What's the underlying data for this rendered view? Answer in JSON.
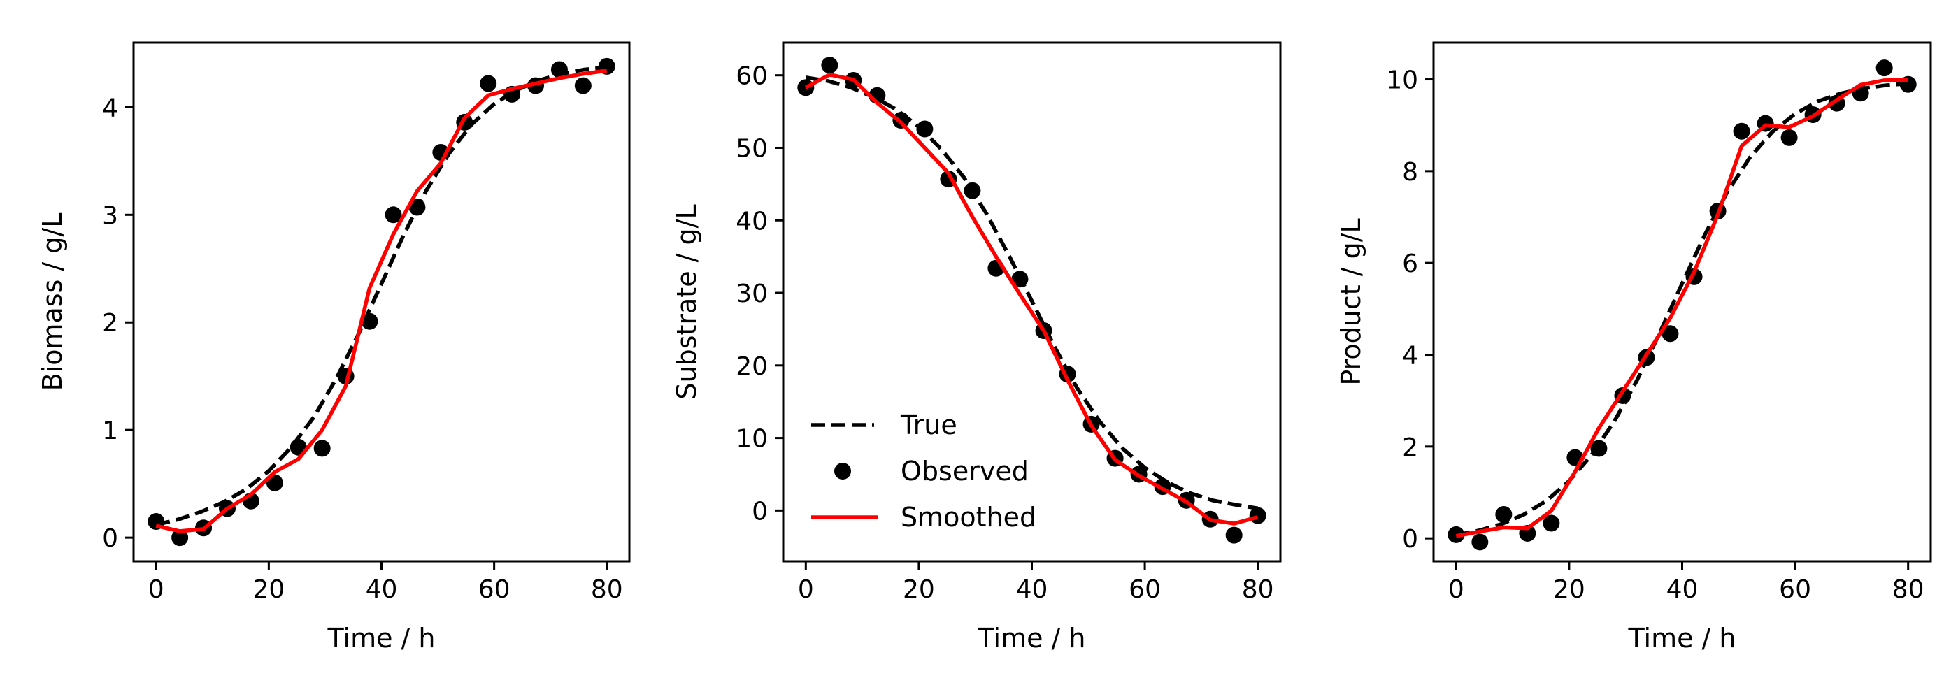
{
  "figure": {
    "legend": {
      "placement": "lower-left",
      "panel": 1,
      "entries": [
        {
          "label": "True",
          "style": "dashed-line",
          "color": "#000000"
        },
        {
          "label": "Observed",
          "style": "marker",
          "color": "#000000"
        },
        {
          "label": "Smoothed",
          "style": "solid-line",
          "color": "#ff0000"
        }
      ]
    }
  },
  "chart_data": [
    {
      "type": "line",
      "title": "",
      "xlabel": "Time / h",
      "ylabel": "Biomass / g/L",
      "xlim": [
        -4,
        84
      ],
      "ylim": [
        -0.22,
        4.6
      ],
      "xticks": [
        0,
        20,
        40,
        60,
        80
      ],
      "xtick_labels": [
        "0",
        "20",
        "40",
        "60",
        "80"
      ],
      "yticks": [
        0,
        1,
        2,
        3,
        4
      ],
      "ytick_labels": [
        "0",
        "1",
        "2",
        "3",
        "4"
      ],
      "grid": false,
      "x_observed": [
        0,
        4.21,
        8.42,
        12.63,
        16.84,
        21.05,
        25.26,
        29.47,
        33.68,
        37.89,
        42.11,
        46.32,
        50.53,
        54.74,
        58.95,
        63.16,
        67.37,
        71.58,
        75.79,
        80
      ],
      "series": [
        {
          "name": "True",
          "style": "dashed",
          "color": "#000000",
          "x": [
            0,
            4,
            8,
            12,
            16,
            20,
            24,
            28,
            32,
            36,
            40,
            44,
            48,
            52,
            56,
            60,
            64,
            68,
            72,
            76,
            80
          ],
          "values": [
            0.12,
            0.17,
            0.24,
            0.33,
            0.45,
            0.62,
            0.84,
            1.12,
            1.48,
            1.9,
            2.36,
            2.82,
            3.23,
            3.57,
            3.84,
            4.03,
            4.16,
            4.25,
            4.31,
            4.35,
            4.37
          ]
        },
        {
          "name": "Observed",
          "style": "marker",
          "color": "#000000",
          "values": [
            0.15,
            0.0,
            0.09,
            0.27,
            0.34,
            0.51,
            0.84,
            0.83,
            1.5,
            2.01,
            3.0,
            3.07,
            3.58,
            3.86,
            4.22,
            4.12,
            4.2,
            4.35,
            4.2,
            4.38
          ]
        },
        {
          "name": "Smoothed",
          "style": "solid",
          "color": "#ff0000",
          "values": [
            0.11,
            0.06,
            0.08,
            0.27,
            0.4,
            0.61,
            0.73,
            1.0,
            1.41,
            2.32,
            2.82,
            3.22,
            3.48,
            3.9,
            4.11,
            4.17,
            4.22,
            4.27,
            4.31,
            4.34
          ]
        }
      ]
    },
    {
      "type": "line",
      "title": "",
      "xlabel": "Time / h",
      "ylabel": "Substrate / g/L",
      "xlim": [
        -4,
        84
      ],
      "ylim": [
        -7,
        64.5
      ],
      "xticks": [
        0,
        20,
        40,
        60,
        80
      ],
      "xtick_labels": [
        "0",
        "20",
        "40",
        "60",
        "80"
      ],
      "yticks": [
        0,
        10,
        20,
        30,
        40,
        50,
        60
      ],
      "ytick_labels": [
        "0",
        "10",
        "20",
        "30",
        "40",
        "50",
        "60"
      ],
      "grid": false,
      "x_observed": [
        0,
        4.21,
        8.42,
        12.63,
        16.84,
        21.05,
        25.26,
        29.47,
        33.68,
        37.89,
        42.11,
        46.32,
        50.53,
        54.74,
        58.95,
        63.16,
        67.37,
        71.58,
        75.79,
        80
      ],
      "series": [
        {
          "name": "True",
          "style": "dashed",
          "color": "#000000",
          "x": [
            0,
            4,
            8,
            12,
            16,
            20,
            24,
            28,
            32,
            36,
            40,
            44,
            48,
            52,
            56,
            60,
            64,
            68,
            72,
            76,
            80
          ],
          "values": [
            59.7,
            59.2,
            58.3,
            57.0,
            55.3,
            52.9,
            49.8,
            45.9,
            40.9,
            35.1,
            28.9,
            22.6,
            16.9,
            12.3,
            8.6,
            5.9,
            3.9,
            2.4,
            1.4,
            0.8,
            0.3
          ]
        },
        {
          "name": "Observed",
          "style": "marker",
          "color": "#000000",
          "values": [
            58.3,
            61.4,
            59.3,
            57.2,
            53.8,
            52.6,
            45.7,
            44.1,
            33.4,
            31.9,
            24.8,
            18.8,
            11.9,
            7.2,
            5.0,
            3.3,
            1.4,
            -1.2,
            -3.4,
            -0.7
          ]
        },
        {
          "name": "Smoothed",
          "style": "solid",
          "color": "#ff0000",
          "values": [
            58.3,
            60.1,
            59.4,
            56.2,
            53.5,
            50.0,
            46.5,
            40.5,
            35.0,
            29.8,
            24.8,
            18.0,
            11.7,
            7.0,
            4.8,
            3.0,
            1.2,
            -1.3,
            -1.8,
            -0.9
          ]
        }
      ]
    },
    {
      "type": "line",
      "title": "",
      "xlabel": "Time / h",
      "ylabel": "Product / g/L",
      "xlim": [
        -4,
        84
      ],
      "ylim": [
        -0.5,
        10.8
      ],
      "xticks": [
        0,
        20,
        40,
        60,
        80
      ],
      "xtick_labels": [
        "0",
        "20",
        "40",
        "60",
        "80"
      ],
      "yticks": [
        0,
        2,
        4,
        6,
        8,
        10
      ],
      "ytick_labels": [
        "0",
        "2",
        "4",
        "6",
        "8",
        "10"
      ],
      "grid": false,
      "x_observed": [
        0,
        4.21,
        8.42,
        12.63,
        16.84,
        21.05,
        25.26,
        29.47,
        33.68,
        37.89,
        42.11,
        46.32,
        50.53,
        54.74,
        58.95,
        63.16,
        67.37,
        71.58,
        75.79,
        80
      ],
      "series": [
        {
          "name": "True",
          "style": "dashed",
          "color": "#000000",
          "x": [
            0,
            4,
            8,
            12,
            16,
            20,
            24,
            28,
            32,
            36,
            40,
            44,
            48,
            52,
            56,
            60,
            64,
            68,
            72,
            76,
            80
          ],
          "values": [
            0.07,
            0.17,
            0.31,
            0.52,
            0.82,
            1.25,
            1.82,
            2.55,
            3.44,
            4.47,
            5.55,
            6.61,
            7.55,
            8.3,
            8.86,
            9.25,
            9.52,
            9.69,
            9.8,
            9.87,
            9.91
          ]
        },
        {
          "name": "Observed",
          "style": "marker",
          "color": "#000000",
          "values": [
            0.08,
            -0.08,
            0.52,
            0.11,
            0.33,
            1.76,
            1.96,
            3.11,
            3.94,
            4.46,
            5.7,
            7.13,
            8.87,
            9.04,
            8.73,
            9.23,
            9.48,
            9.7,
            10.25,
            9.89
          ]
        },
        {
          "name": "Smoothed",
          "style": "solid",
          "color": "#ff0000",
          "values": [
            0.05,
            0.15,
            0.24,
            0.22,
            0.6,
            1.45,
            2.4,
            3.2,
            4.0,
            4.8,
            5.8,
            7.05,
            8.55,
            9.0,
            8.96,
            9.2,
            9.55,
            9.88,
            9.98,
            9.99
          ]
        }
      ]
    }
  ]
}
